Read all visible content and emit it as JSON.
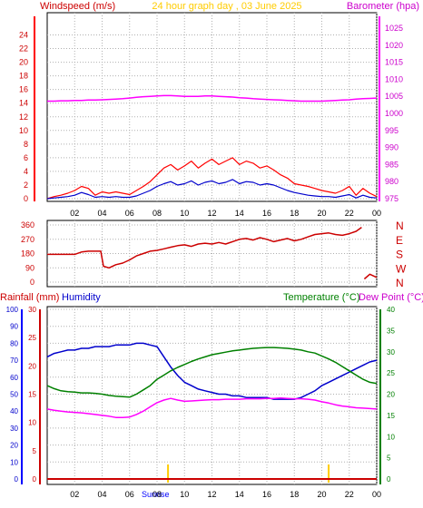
{
  "header": {
    "left_title": "Windspeed (m/s)",
    "center_title": "24 hour graph day , 03 June 2025",
    "right_title": "Barometer (hpa)"
  },
  "x_ticks": [
    "02",
    "04",
    "06",
    "08",
    "10",
    "12",
    "14",
    "16",
    "18",
    "20",
    "22",
    "00"
  ],
  "colors": {
    "wind": "#ff0000",
    "wind_avg": "#0000cc",
    "baro": "#ff00ff",
    "dir": "#cc0000",
    "humidity": "#0000cc",
    "temperature": "#008000",
    "dewpoint": "#ff00ff",
    "rain": "#cc0000",
    "sun": "#ffcc00",
    "grid": "#b0b0b0",
    "axis_left": "#0000ff"
  },
  "chart_data": [
    {
      "type": "line",
      "title": "24 hour graph day , 03 June 2025",
      "ylabel": "Windspeed (m/s)",
      "y2label": "Barometer (hpa)",
      "ylim": [
        0,
        25
      ],
      "y2lim": [
        975,
        1025
      ],
      "yticks": [
        0,
        2,
        4,
        6,
        8,
        10,
        12,
        14,
        16,
        18,
        20,
        22,
        24
      ],
      "y2ticks": [
        975,
        980,
        985,
        990,
        995,
        1000,
        1005,
        1010,
        1015,
        1020,
        1025
      ],
      "xticks": [
        "02",
        "04",
        "06",
        "08",
        "10",
        "12",
        "14",
        "16",
        "18",
        "20",
        "22",
        "00"
      ],
      "x_hours": [
        0,
        0.5,
        1,
        1.5,
        2,
        2.5,
        3,
        3.5,
        4,
        4.5,
        5,
        5.5,
        6,
        6.5,
        7,
        7.5,
        8,
        8.5,
        9,
        9.5,
        10,
        10.5,
        11,
        11.5,
        12,
        12.5,
        13,
        13.5,
        14,
        14.5,
        15,
        15.5,
        16,
        16.5,
        17,
        17.5,
        18,
        18.5,
        19,
        19.5,
        20,
        20.5,
        21,
        21.5,
        22,
        22.5,
        23,
        23.5,
        24
      ],
      "series": [
        {
          "name": "Wind gust",
          "values": [
            0,
            0.3,
            0.5,
            0.8,
            1.2,
            1.8,
            1.5,
            0.5,
            1.0,
            0.8,
            1.0,
            0.8,
            0.6,
            1.2,
            1.8,
            2.5,
            3.5,
            4.5,
            5.0,
            4.2,
            4.8,
            5.5,
            4.5,
            5.2,
            5.8,
            5.0,
            5.5,
            6.0,
            5.0,
            5.5,
            5.2,
            4.5,
            4.8,
            4.2,
            3.5,
            3.0,
            2.2,
            2.0,
            1.8,
            1.5,
            1.2,
            1.0,
            0.8,
            1.2,
            1.8,
            0.5,
            1.5,
            0.8,
            0.3
          ]
        },
        {
          "name": "Wind speed",
          "values": [
            0,
            0.1,
            0.2,
            0.3,
            0.5,
            0.9,
            0.6,
            0.2,
            0.3,
            0.2,
            0.3,
            0.2,
            0.2,
            0.4,
            0.8,
            1.2,
            1.8,
            2.2,
            2.5,
            2.0,
            2.2,
            2.6,
            2.0,
            2.4,
            2.6,
            2.2,
            2.4,
            2.8,
            2.2,
            2.5,
            2.4,
            2.0,
            2.2,
            2.0,
            1.6,
            1.2,
            0.9,
            0.7,
            0.5,
            0.4,
            0.3,
            0.3,
            0.2,
            0.4,
            0.6,
            0.1,
            0.5,
            0.2,
            0.1
          ]
        },
        {
          "name": "Barometer",
          "axis": "right",
          "values": [
            1003.6,
            1003.6,
            1003.7,
            1003.7,
            1003.8,
            1003.8,
            1003.9,
            1003.9,
            1004.0,
            1004.1,
            1004.2,
            1004.3,
            1004.5,
            1004.7,
            1004.9,
            1005.0,
            1005.1,
            1005.2,
            1005.2,
            1005.1,
            1005.0,
            1005.0,
            1005.0,
            1005.1,
            1005.1,
            1005.0,
            1004.9,
            1004.8,
            1004.6,
            1004.5,
            1004.3,
            1004.2,
            1004.1,
            1004.0,
            1003.9,
            1003.8,
            1003.7,
            1003.6,
            1003.6,
            1003.6,
            1003.6,
            1003.7,
            1003.8,
            1003.9,
            1004.0,
            1004.2,
            1004.3,
            1004.4,
            1004.5
          ]
        }
      ]
    },
    {
      "type": "line",
      "ylim": [
        0,
        360
      ],
      "yticks": [
        0,
        90,
        180,
        270,
        360
      ],
      "y2ticks": [
        "N",
        "W",
        "S",
        "E",
        "N"
      ],
      "xticks": [
        "02",
        "04",
        "06",
        "08",
        "10",
        "12",
        "14",
        "16",
        "18",
        "20",
        "22",
        "00"
      ],
      "x_hours": [
        0,
        0.5,
        1,
        1.5,
        2,
        2.5,
        3,
        3.5,
        3.9,
        4.1,
        4.5,
        5,
        5.5,
        6,
        6.5,
        7,
        7.5,
        8,
        8.5,
        9,
        9.5,
        10,
        10.5,
        11,
        11.5,
        12,
        12.5,
        13,
        13.5,
        14,
        14.5,
        15,
        15.5,
        16,
        16.5,
        17,
        17.5,
        18,
        18.5,
        19,
        19.5,
        20,
        20.5,
        21,
        21.5,
        22,
        22.5,
        22.9,
        23.1,
        23.5,
        24
      ],
      "series": [
        {
          "name": "Wind direction",
          "values": [
            175,
            175,
            175,
            175,
            175,
            190,
            195,
            195,
            195,
            100,
            90,
            110,
            120,
            140,
            165,
            180,
            195,
            200,
            210,
            220,
            230,
            235,
            225,
            240,
            245,
            240,
            250,
            240,
            255,
            270,
            275,
            265,
            280,
            270,
            255,
            265,
            275,
            260,
            270,
            285,
            300,
            305,
            310,
            300,
            295,
            305,
            320,
            345,
            20,
            50,
            30
          ]
        }
      ]
    },
    {
      "type": "line",
      "ylabel": "Humidity",
      "ylabel2": "Rainfall (mm)",
      "y2label": "Temperature (°C)",
      "y2label2": "Dew Point (°C)",
      "humidity_ticks": [
        0,
        10,
        20,
        30,
        40,
        50,
        60,
        70,
        80,
        90,
        100
      ],
      "rain_ticks": [
        0,
        5,
        10,
        15,
        20,
        25,
        30
      ],
      "temp_ticks": [
        0,
        5,
        10,
        15,
        20,
        25,
        30,
        35,
        40
      ],
      "ylim": [
        0,
        100
      ],
      "y2lim": [
        0,
        40
      ],
      "xticks": [
        "02",
        "04",
        "06",
        "08",
        "10",
        "12",
        "14",
        "16",
        "18",
        "20",
        "22",
        "00"
      ],
      "sunrise_label": "Sunrise",
      "sunrise_hour": 8.8,
      "sunset_hour": 20.5,
      "x_hours": [
        0,
        0.5,
        1,
        1.5,
        2,
        2.5,
        3,
        3.5,
        4,
        4.5,
        5,
        5.5,
        6,
        6.5,
        7,
        7.5,
        8,
        8.5,
        9,
        9.5,
        10,
        10.5,
        11,
        11.5,
        12,
        12.5,
        13,
        13.5,
        14,
        14.5,
        15,
        15.5,
        16,
        16.5,
        17,
        17.5,
        18,
        18.5,
        19,
        19.5,
        20,
        20.5,
        21,
        21.5,
        22,
        22.5,
        23,
        23.5,
        24
      ],
      "series": [
        {
          "name": "Humidity",
          "values": [
            72,
            74,
            75,
            76,
            76,
            77,
            77,
            78,
            78,
            78,
            79,
            79,
            79,
            80,
            80,
            79,
            78,
            72,
            66,
            61,
            57,
            55,
            53,
            52,
            51,
            50,
            50,
            49,
            49,
            48,
            48,
            48,
            48,
            47,
            47,
            47,
            47,
            48,
            50,
            52,
            55,
            57,
            59,
            61,
            63,
            65,
            67,
            69,
            70
          ]
        },
        {
          "name": "Temperature",
          "axis": "right",
          "values": [
            22.0,
            21.3,
            20.8,
            20.6,
            20.5,
            20.3,
            20.3,
            20.2,
            20.0,
            19.7,
            19.5,
            19.4,
            19.3,
            20.0,
            21.0,
            22.0,
            23.5,
            24.5,
            25.5,
            26.3,
            27.0,
            27.7,
            28.3,
            28.8,
            29.3,
            29.6,
            29.9,
            30.2,
            30.4,
            30.6,
            30.8,
            30.9,
            31.0,
            31.0,
            30.9,
            30.8,
            30.6,
            30.4,
            30.0,
            29.7,
            29.0,
            28.3,
            27.5,
            26.5,
            25.5,
            24.5,
            23.5,
            22.8,
            22.5
          ]
        },
        {
          "name": "Dew Point",
          "axis": "right",
          "values": [
            16.5,
            16.2,
            16.0,
            15.8,
            15.7,
            15.6,
            15.4,
            15.2,
            15.0,
            14.8,
            14.5,
            14.5,
            14.6,
            15.2,
            16.0,
            17.0,
            18.0,
            18.6,
            19.0,
            18.6,
            18.3,
            18.4,
            18.5,
            18.6,
            18.7,
            18.7,
            18.8,
            18.8,
            18.8,
            18.9,
            18.9,
            18.9,
            19.0,
            19.0,
            19.1,
            19.0,
            18.9,
            18.9,
            18.8,
            18.6,
            18.2,
            17.9,
            17.5,
            17.2,
            17.0,
            16.8,
            16.7,
            16.6,
            16.5
          ]
        },
        {
          "name": "Rainfall",
          "values": [
            0,
            0,
            0,
            0,
            0,
            0,
            0,
            0,
            0,
            0,
            0,
            0,
            0,
            0,
            0,
            0,
            0,
            0,
            0,
            0,
            0,
            0,
            0,
            0,
            0,
            0,
            0,
            0,
            0,
            0,
            0,
            0,
            0,
            0,
            0,
            0,
            0,
            0,
            0,
            0,
            0,
            0,
            0,
            0,
            0,
            0,
            0,
            0,
            0
          ]
        }
      ]
    }
  ]
}
